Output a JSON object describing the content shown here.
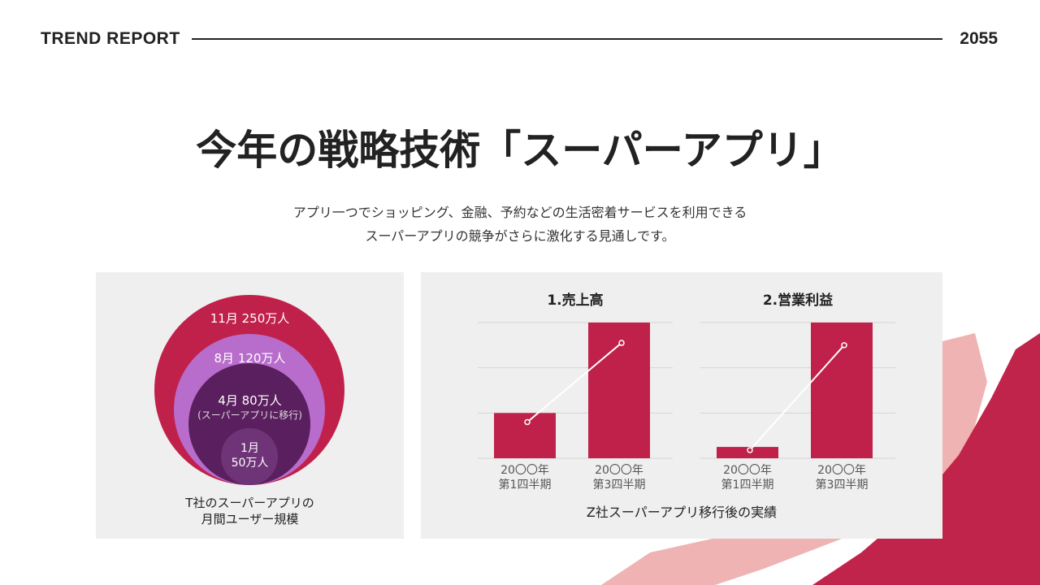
{
  "header": {
    "left": "TREND REPORT",
    "right": "2055"
  },
  "title": "今年の戦略技術「スーパーアプリ」",
  "subtitle": [
    "アプリ一つでショッピング、金融、予約などの生活密着サービスを利用できる",
    "スーパーアプリの競争がさらに激化する見通しです。"
  ],
  "colors": {
    "accent": "#c0214a",
    "pink": "#efb3b3",
    "violet": "#b86ccb",
    "purple": "#5a1f5e",
    "plum": "#6e3477",
    "panel": "#efefef"
  },
  "left_panel": {
    "circles": [
      {
        "label": "11月 250万人",
        "value": 250
      },
      {
        "label": "8月 120万人",
        "value": 120
      },
      {
        "label": "4月 80万人",
        "note": "(スーパーアプリに移行)",
        "value": 80
      },
      {
        "label": "1月",
        "label2": "50万人",
        "value": 50
      }
    ],
    "caption": [
      "T社のスーパーアプリの",
      "月間ユーザー規模"
    ]
  },
  "chart_data": [
    {
      "type": "bar",
      "title": "1.売上高",
      "categories": [
        [
          "20〇〇年",
          "第1四半期"
        ],
        [
          "20〇〇年",
          "第3四半期"
        ]
      ],
      "values": [
        1,
        3
      ],
      "line_values": [
        0.8,
        2.55
      ],
      "ylim": [
        0,
        3
      ],
      "grid": true
    },
    {
      "type": "bar",
      "title": "2.営業利益",
      "categories": [
        [
          "20〇〇年",
          "第1四半期"
        ],
        [
          "20〇〇年",
          "第3四半期"
        ]
      ],
      "values": [
        0.25,
        3
      ],
      "line_values": [
        0.18,
        2.5
      ],
      "ylim": [
        0,
        3
      ],
      "grid": true
    }
  ],
  "right_caption": "Z社スーパーアプリ移行後の実績"
}
